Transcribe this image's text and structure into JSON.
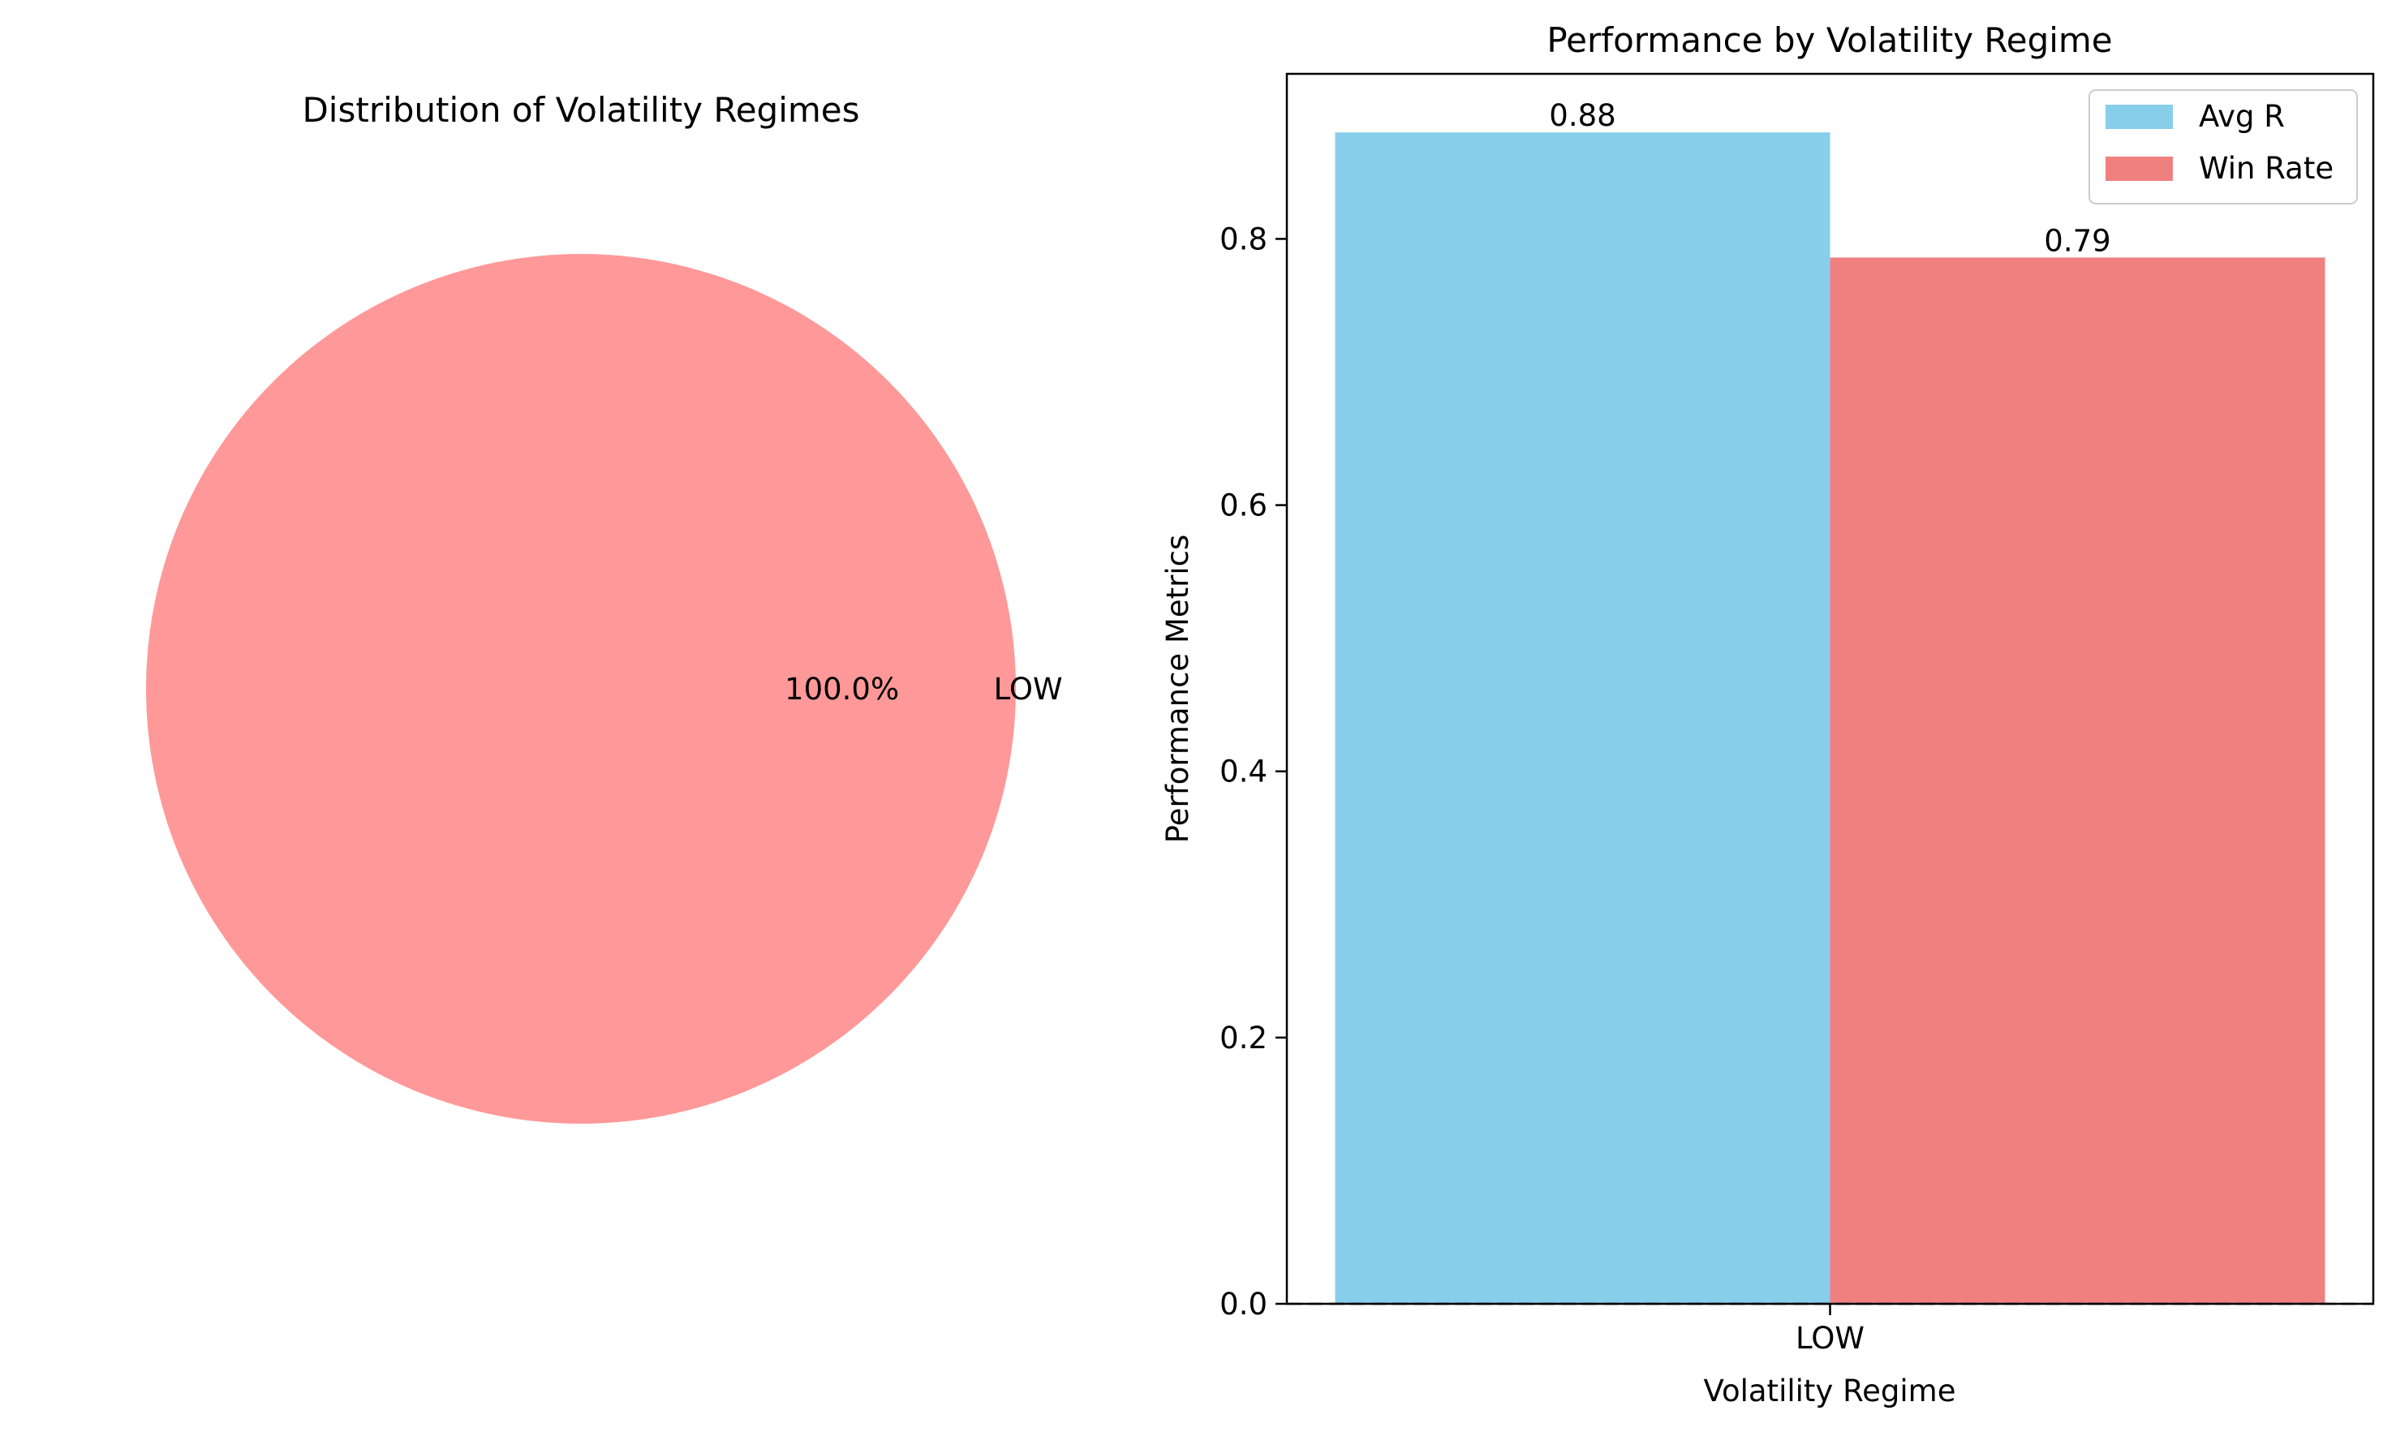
{
  "chart_data": [
    {
      "type": "pie",
      "title": "Distribution of Volatility Regimes",
      "slices": [
        {
          "label": "LOW",
          "value": 100.0,
          "pct_label": "100.0%",
          "color": "#ff9999"
        }
      ]
    },
    {
      "type": "bar",
      "title": "Performance by Volatility Regime",
      "xlabel": "Volatility Regime",
      "ylabel": "Performance Metrics",
      "categories": [
        "LOW"
      ],
      "ylim": [
        0,
        0.924
      ],
      "yticks": [
        0.0,
        0.2,
        0.4,
        0.6,
        0.8
      ],
      "ytick_labels": [
        "0.0",
        "0.2",
        "0.4",
        "0.6",
        "0.8"
      ],
      "series": [
        {
          "name": "Avg R",
          "values": [
            0.88
          ],
          "value_labels": [
            "0.88"
          ],
          "color": "#87ceeb"
        },
        {
          "name": "Win Rate",
          "values": [
            0.786
          ],
          "value_labels": [
            "0.79"
          ],
          "color": "#f08080"
        }
      ],
      "reference_line": {
        "y": 0,
        "style": "dashed",
        "color": "#000000"
      },
      "legend": "top-right",
      "grid": false
    }
  ]
}
